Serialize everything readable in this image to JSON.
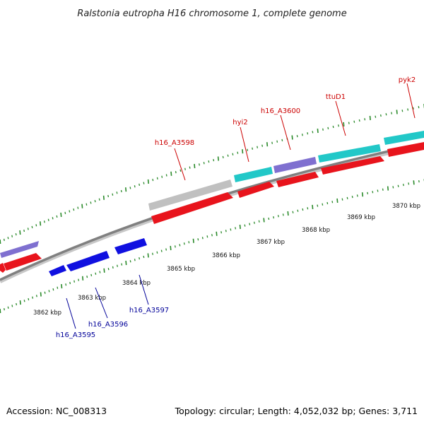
{
  "title": "Ralstonia eutropha H16 chromosome 1, complete genome",
  "footer": {
    "accession": "Accession: NC_008313",
    "summary": "Topology: circular; Length: 4,052,032 bp; Genes: 3,711"
  },
  "colors": {
    "backbone": "#808080",
    "tick": "#2a8a2a",
    "cds_forward": "#e8141c",
    "cds_reverse": "#1010e0",
    "blast": "#7f70d0",
    "cog": "#22c8c8",
    "pseudo": "#c0c0c0",
    "label_forward": "#cc0000",
    "label_reverse": "#000099"
  },
  "scale": {
    "labels": [
      "3862 kbp",
      "3863 kbp",
      "3864 kbp",
      "3865 kbp",
      "3866 kbp",
      "3867 kbp",
      "3868 kbp",
      "3869 kbp",
      "3870 kbp"
    ]
  },
  "forward_labels": [
    "h16_A3598",
    "hyi2",
    "h16_A3600",
    "ttuD1",
    "pyk2"
  ],
  "reverse_labels": [
    "h16_A3595",
    "h16_A3596",
    "h16_A3597"
  ]
}
